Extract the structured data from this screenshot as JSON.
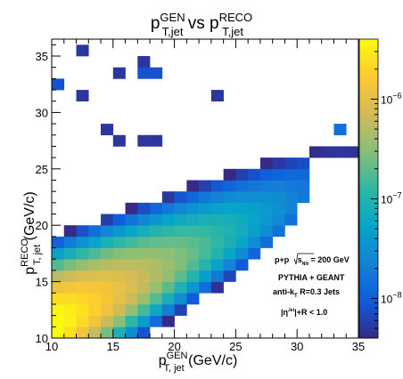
{
  "chart_data": {
    "type": "heatmap",
    "title": {
      "base1": "p",
      "sup1": "GEN",
      "sub1": "T,jet",
      "mid": " vs ",
      "base2": "p",
      "sup2": "RECO",
      "sub2": "T,jet"
    },
    "xlabel": {
      "base": "p",
      "sup": "GEN",
      "sub": "T, jet",
      "unit": " (GeV/c)"
    },
    "ylabel": {
      "base": "p",
      "sup": "RECO",
      "sub": "T, jet",
      "unit": " (GeV/c)"
    },
    "x_range": [
      10,
      35
    ],
    "y_range": [
      10,
      36.5
    ],
    "x_ticks": [
      "10",
      "15",
      "20",
      "25",
      "30",
      "35"
    ],
    "y_ticks": [
      "10",
      "15",
      "20",
      "25",
      "30",
      "35"
    ],
    "bin_width": 1,
    "z_scale": "log",
    "z_range": [
      4e-09,
      4e-06
    ],
    "z_ticks": [
      {
        "value": 1e-08,
        "base": "10",
        "exp": "−8"
      },
      {
        "value": 1e-07,
        "base": "10",
        "exp": "−7"
      },
      {
        "value": 1e-06,
        "base": "10",
        "exp": "−6"
      }
    ],
    "colormap": [
      "#352a87",
      "#0f5cdd",
      "#1481d6",
      "#06a4ca",
      "#2eb7a4",
      "#87bf77",
      "#d1bb59",
      "#fec832",
      "#f9fb0e"
    ],
    "annotations": {
      "line1": {
        "pre": "p+p ",
        "root": "s",
        "sub": "NN",
        "post": " = 200 GeV"
      },
      "line2": "PYTHIA + GEANT",
      "line3": {
        "pre": "anti-k",
        "sub": "T",
        "post": " R=0.3 Jets"
      },
      "line4": {
        "pre": "|η",
        "sup": "Jet",
        "post": "|+R < 1.0"
      }
    },
    "outlier_bins": [
      {
        "x": 12.5,
        "y": 35.5,
        "z": 5e-09
      },
      {
        "x": 17.5,
        "y": 34.5,
        "z": 5e-09
      },
      {
        "x": 15.5,
        "y": 33.5,
        "z": 5e-09
      },
      {
        "x": 17.5,
        "y": 33.5,
        "z": 8e-09
      },
      {
        "x": 18.5,
        "y": 33.5,
        "z": 8e-09
      },
      {
        "x": 10.5,
        "y": 32.5,
        "z": 8e-09
      },
      {
        "x": 12.5,
        "y": 31.5,
        "z": 5e-09
      },
      {
        "x": 23.5,
        "y": 31.5,
        "z": 5e-09
      },
      {
        "x": 33.5,
        "y": 28.5,
        "z": 1.5e-08
      },
      {
        "x": 14.5,
        "y": 28.5,
        "z": 5e-09
      },
      {
        "x": 15.5,
        "y": 27.5,
        "z": 5e-09
      },
      {
        "x": 17.5,
        "y": 27.5,
        "z": 5e-09
      },
      {
        "x": 18.5,
        "y": 27.5,
        "z": 5e-09
      }
    ]
  }
}
